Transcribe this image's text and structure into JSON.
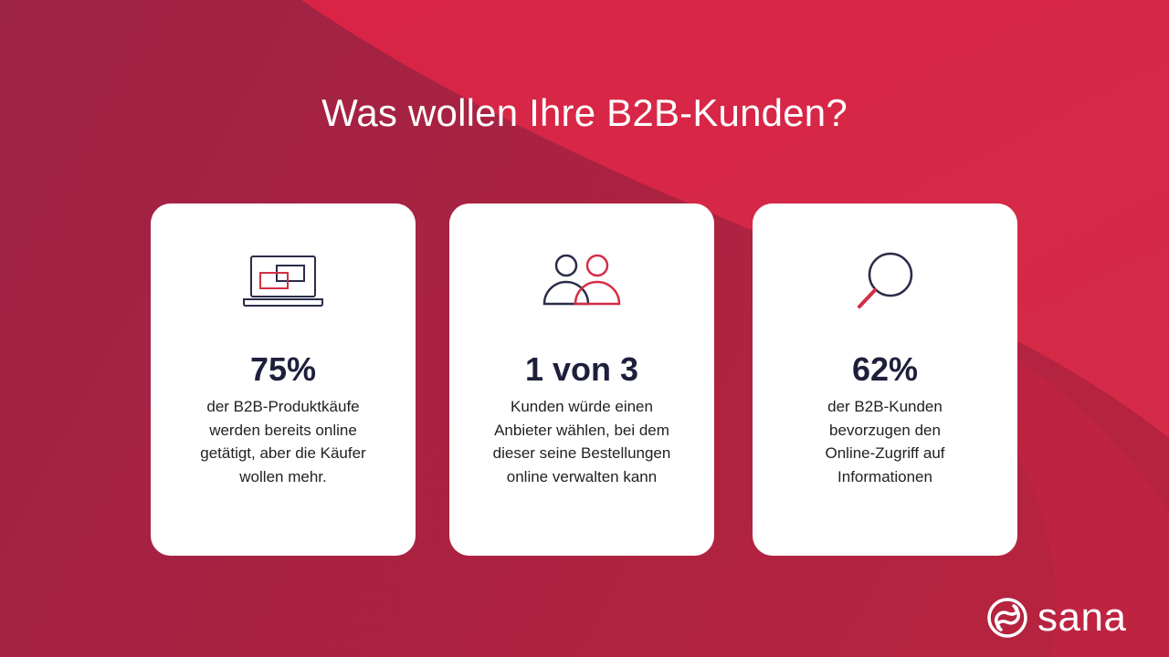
{
  "colors": {
    "background_dark": "#a32345",
    "background_bright": "#d82545",
    "card": "#ffffff",
    "stat_text": "#1e1f3b",
    "icon_navy": "#2a2c4a",
    "icon_red": "#d32e46"
  },
  "header": {
    "title": "Was wollen Ihre B2B-Kunden?"
  },
  "cards": [
    {
      "icon": "laptop-icon",
      "stat": "75%",
      "description": "der B2B-Produktkäufe werden bereits online getätigt, aber die Käufer wollen mehr."
    },
    {
      "icon": "people-icon",
      "stat": "1 von 3",
      "description": "Kunden würde einen Anbieter wählen, bei dem dieser seine Bestellungen online verwalten kann"
    },
    {
      "icon": "magnifier-icon",
      "stat": "62%",
      "description": "der B2B-Kunden bevorzugen den Online-Zugriff auf Informationen"
    }
  ],
  "logo": {
    "icon": "sana-logo-icon",
    "text": "sana"
  }
}
